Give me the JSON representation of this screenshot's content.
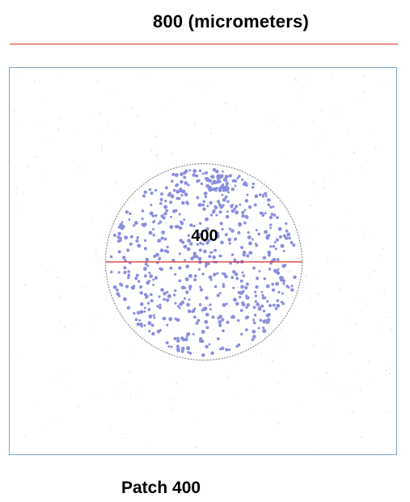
{
  "scale": {
    "field_label": "800 (micrometers)",
    "field_size_um": 800,
    "bar_color": "#e0302a"
  },
  "patch": {
    "diameter_label": "400",
    "diameter_um": 400,
    "caption": "Patch 400",
    "outline_color": "#8a8a8a",
    "diameter_line_color": "#d42a2a"
  },
  "cells": {
    "color": "#8a8ee0",
    "background_speckle_color": "#d8d8d8"
  },
  "frame": {
    "border_color": "#7aa6c9"
  }
}
